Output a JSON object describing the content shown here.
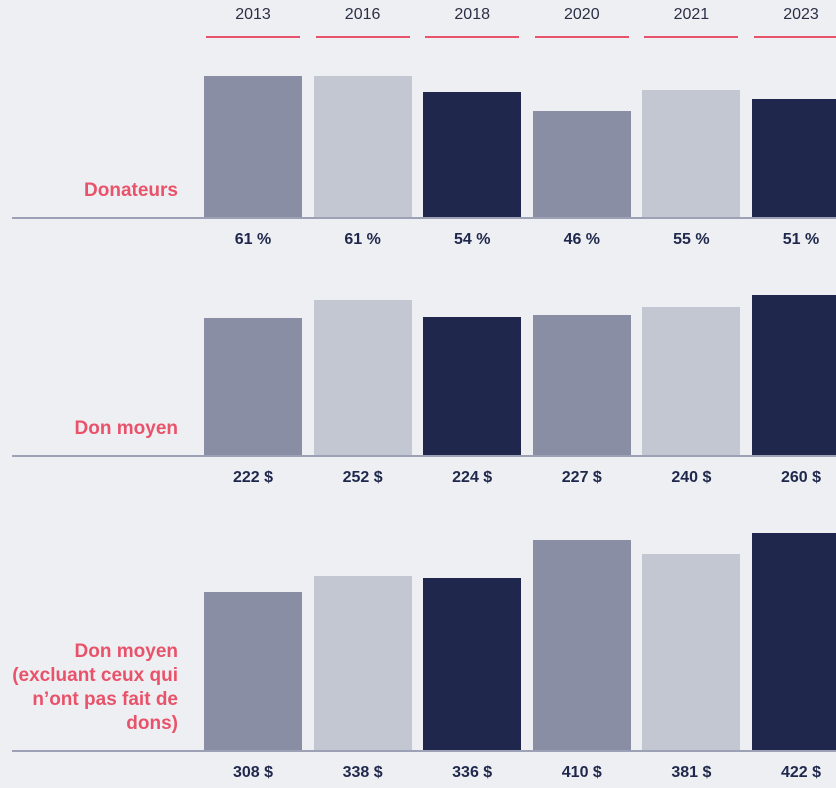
{
  "chart_data": [
    {
      "type": "bar",
      "title": "Donateurs",
      "categories": [
        "2013",
        "2016",
        "2018",
        "2020",
        "2021",
        "2023"
      ],
      "values": [
        61,
        61,
        54,
        46,
        55,
        51
      ],
      "value_labels": [
        "61 %",
        "61 %",
        "54 %",
        "46 %",
        "55 %",
        "51 %"
      ],
      "colors": [
        "#8a8ea5",
        "#c3c7d1",
        "#1f284c",
        "#8a8ea5",
        "#c3c7d1",
        "#1f284c"
      ],
      "ylim": [
        0,
        68
      ]
    },
    {
      "type": "bar",
      "title": "Don moyen",
      "values": [
        222,
        252,
        224,
        227,
        240,
        260
      ],
      "value_labels": [
        "222 $",
        "252 $",
        "224 $",
        "227 $",
        "240 $",
        "260 $"
      ],
      "colors": [
        "#8a8ea5",
        "#c3c7d1",
        "#1f284c",
        "#8a8ea5",
        "#c3c7d1",
        "#1f284c"
      ],
      "ylim": [
        0,
        284
      ]
    },
    {
      "type": "bar",
      "title": "Don moyen (excluant ceux qui n’ont pas fait de dons)",
      "values": [
        308,
        338,
        336,
        410,
        381,
        422
      ],
      "value_labels": [
        "308 $",
        "338 $",
        "336 $",
        "410 $",
        "381 $",
        "422 $"
      ],
      "colors": [
        "#8a8ea5",
        "#c3c7d1",
        "#1f284c",
        "#8a8ea5",
        "#c3c7d1",
        "#1f284c"
      ],
      "ylim": [
        0,
        448
      ]
    }
  ]
}
